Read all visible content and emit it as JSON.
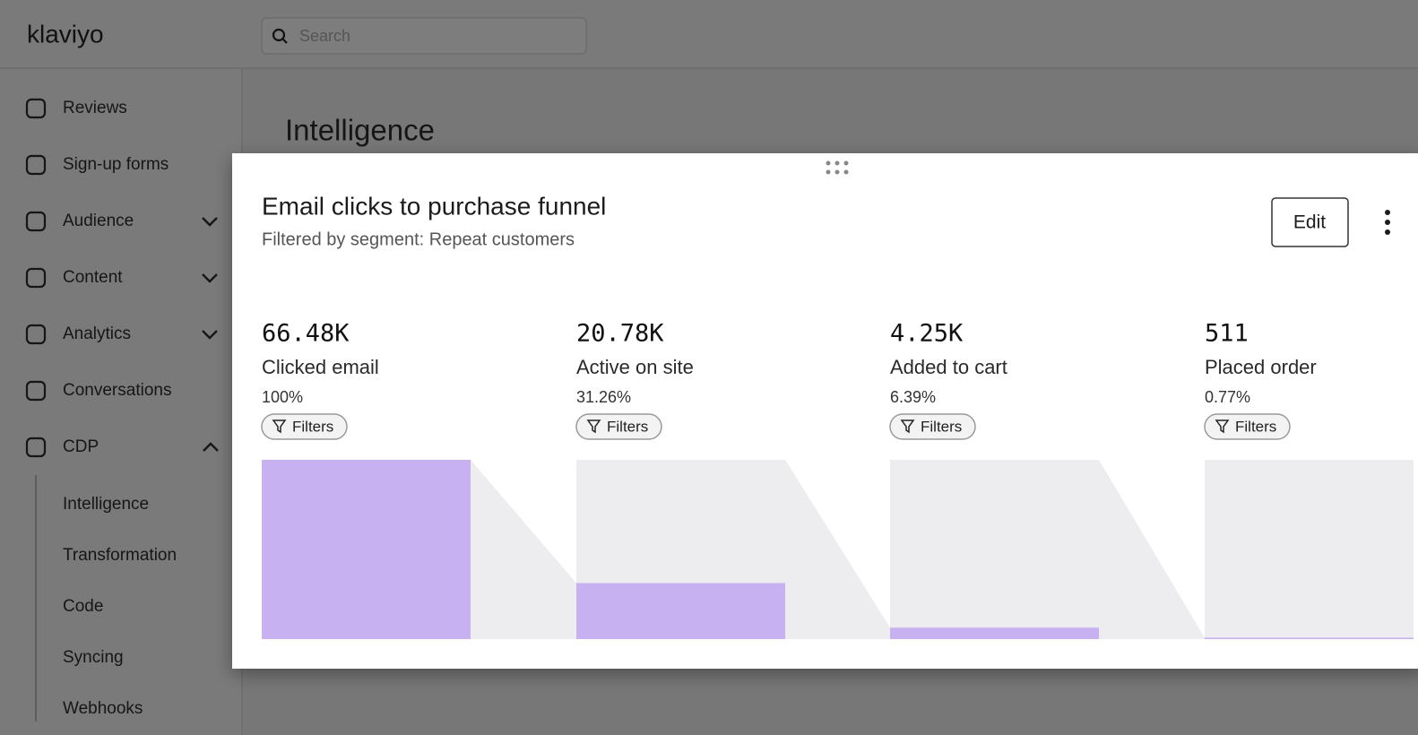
{
  "header": {
    "logo": "klaviyo",
    "search_placeholder": "Search"
  },
  "nav": {
    "items": [
      "Reviews",
      "Sign-up forms",
      "Audience",
      "Content",
      "Analytics",
      "Conversations",
      "CDP"
    ],
    "sub_items": [
      "Intelligence",
      "Transformation",
      "Code",
      "Syncing",
      "Webhooks"
    ]
  },
  "page": {
    "title": "Intelligence"
  },
  "card": {
    "edit_button": "Edit",
    "filters": [
      "Filters",
      "Filters",
      "Filters",
      "Filters"
    ]
  },
  "chart_data": {
    "type": "funnel",
    "title": "Email clicks to purchase funnel",
    "subtitle": "Filtered by segment: Repeat customers",
    "categories": [
      "Clicked email",
      "Active on site",
      "Added to cart",
      "Placed order"
    ],
    "values": [
      66480,
      20780,
      4250,
      511
    ],
    "value_labels": [
      "66.48K",
      "20.78K",
      "4.25K",
      "511"
    ],
    "percent_labels": [
      "100%",
      "31.26%",
      "6.39%",
      "0.77%"
    ],
    "color": "#c8b1f0",
    "track_color": "#ededf0"
  }
}
